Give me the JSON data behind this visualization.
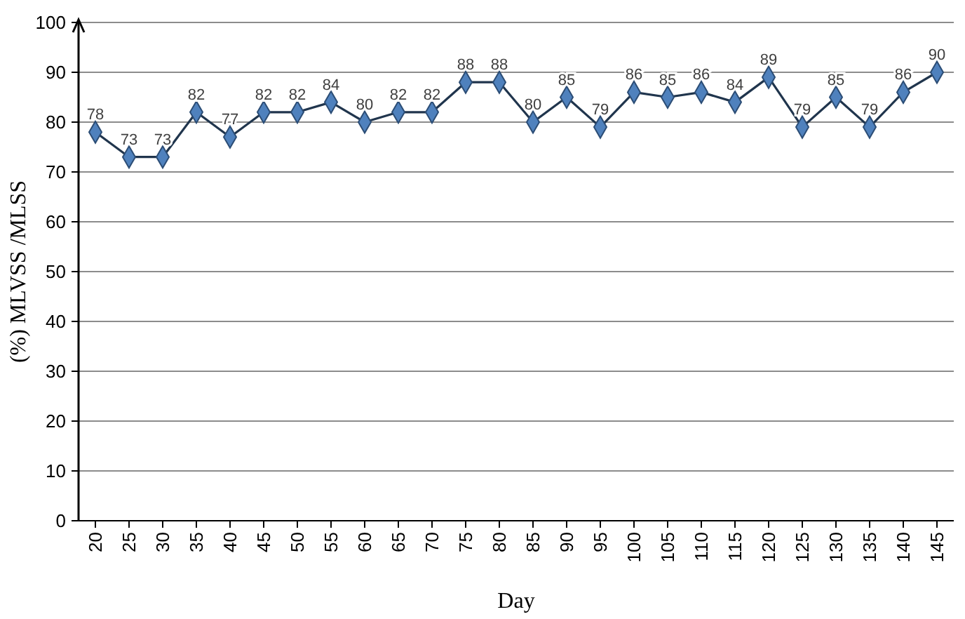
{
  "chart_data": {
    "type": "line",
    "xlabel": "Day",
    "ylabel": "(%) MLVSS /MLSS",
    "categories": [
      "20",
      "25",
      "30",
      "35",
      "40",
      "45",
      "50",
      "55",
      "60",
      "65",
      "70",
      "75",
      "80",
      "85",
      "90",
      "95",
      "100",
      "105",
      "110",
      "115",
      "120",
      "125",
      "130",
      "135",
      "140",
      "145"
    ],
    "series": [
      {
        "color": "#4f81bd",
        "values": [
          78,
          73,
          73,
          82,
          77,
          82,
          82,
          84,
          80,
          82,
          82,
          88,
          88,
          80,
          85,
          79,
          86,
          85,
          86,
          84,
          89,
          79,
          85,
          79,
          86,
          90
        ]
      }
    ],
    "ylim": [
      0,
      100
    ],
    "yticks": [
      0,
      10,
      20,
      30,
      40,
      50,
      60,
      70,
      80,
      90,
      100
    ],
    "grid": "y",
    "marker": "diamond",
    "line_style": "solid",
    "data_labels": true
  }
}
